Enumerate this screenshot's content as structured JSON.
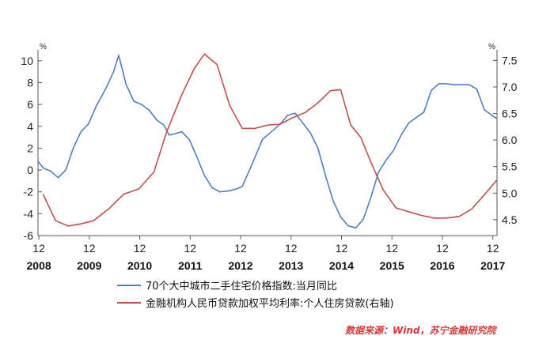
{
  "chart_data": {
    "type": "line",
    "left_axis": {
      "unit": "%",
      "ylim": [
        -6,
        11
      ],
      "ticks": [
        -6,
        -4,
        -2,
        0,
        2,
        4,
        6,
        8,
        10
      ]
    },
    "right_axis": {
      "unit": "%",
      "ylim": [
        4.2,
        7.7
      ],
      "ticks": [
        4.5,
        5.0,
        5.5,
        6.0,
        6.5,
        7.0,
        7.5
      ]
    },
    "x_axis": {
      "xlim": [
        2008.9,
        2018.0
      ],
      "ticks": [
        {
          "pos": 2008.917,
          "month": "12",
          "year": "2008"
        },
        {
          "pos": 2009.917,
          "month": "12",
          "year": "2009"
        },
        {
          "pos": 2010.917,
          "month": "12",
          "year": "2010"
        },
        {
          "pos": 2011.917,
          "month": "12",
          "year": "2011"
        },
        {
          "pos": 2012.917,
          "month": "12",
          "year": "2012"
        },
        {
          "pos": 2013.917,
          "month": "12",
          "year": "2013"
        },
        {
          "pos": 2014.917,
          "month": "12",
          "year": "2014"
        },
        {
          "pos": 2015.917,
          "month": "12",
          "year": "2015"
        },
        {
          "pos": 2016.917,
          "month": "12",
          "year": "2016"
        },
        {
          "pos": 2017.917,
          "month": "12",
          "year": "2017"
        }
      ]
    },
    "series": [
      {
        "name": "70个大中城市二手住宅价格指数:当月同比",
        "axis": "left",
        "color": "#4f7fbf",
        "points": [
          [
            2008.9,
            0.8
          ],
          [
            2009.0,
            0.2
          ],
          [
            2009.15,
            -0.1
          ],
          [
            2009.3,
            -0.7
          ],
          [
            2009.45,
            0.0
          ],
          [
            2009.6,
            2.0
          ],
          [
            2009.75,
            3.5
          ],
          [
            2009.9,
            4.2
          ],
          [
            2010.05,
            5.8
          ],
          [
            2010.25,
            7.5
          ],
          [
            2010.4,
            9.0
          ],
          [
            2010.5,
            10.5
          ],
          [
            2010.65,
            7.8
          ],
          [
            2010.8,
            6.3
          ],
          [
            2010.95,
            6.0
          ],
          [
            2011.1,
            5.5
          ],
          [
            2011.25,
            4.6
          ],
          [
            2011.4,
            4.1
          ],
          [
            2011.5,
            3.2
          ],
          [
            2011.6,
            3.3
          ],
          [
            2011.75,
            3.5
          ],
          [
            2011.9,
            2.8
          ],
          [
            2012.05,
            1.2
          ],
          [
            2012.2,
            -0.5
          ],
          [
            2012.35,
            -1.6
          ],
          [
            2012.5,
            -2.0
          ],
          [
            2012.7,
            -1.9
          ],
          [
            2012.85,
            -1.7
          ],
          [
            2012.95,
            -1.5
          ],
          [
            2013.15,
            0.6
          ],
          [
            2013.35,
            2.8
          ],
          [
            2013.55,
            3.6
          ],
          [
            2013.7,
            4.2
          ],
          [
            2013.85,
            5.0
          ],
          [
            2014.0,
            5.2
          ],
          [
            2014.15,
            4.3
          ],
          [
            2014.3,
            3.4
          ],
          [
            2014.45,
            2.0
          ],
          [
            2014.6,
            -0.5
          ],
          [
            2014.75,
            -2.8
          ],
          [
            2014.9,
            -4.3
          ],
          [
            2015.05,
            -5.1
          ],
          [
            2015.2,
            -5.3
          ],
          [
            2015.35,
            -4.5
          ],
          [
            2015.5,
            -2.5
          ],
          [
            2015.65,
            -0.2
          ],
          [
            2015.8,
            0.9
          ],
          [
            2015.95,
            1.8
          ],
          [
            2016.1,
            3.2
          ],
          [
            2016.25,
            4.3
          ],
          [
            2016.4,
            4.8
          ],
          [
            2016.55,
            5.3
          ],
          [
            2016.7,
            7.3
          ],
          [
            2016.85,
            7.9
          ],
          [
            2017.0,
            7.9
          ],
          [
            2017.15,
            7.8
          ],
          [
            2017.3,
            7.8
          ],
          [
            2017.45,
            7.8
          ],
          [
            2017.6,
            7.4
          ],
          [
            2017.75,
            5.5
          ],
          [
            2017.9,
            5.0
          ],
          [
            2018.0,
            4.7
          ]
        ]
      },
      {
        "name": "金融机构人民币贷款加权平均利率:个人住房贷款(右轴)",
        "axis": "right",
        "color": "#c0504d",
        "points": [
          [
            2009.0,
            4.98
          ],
          [
            2009.25,
            4.48
          ],
          [
            2009.5,
            4.38
          ],
          [
            2009.75,
            4.42
          ],
          [
            2010.0,
            4.48
          ],
          [
            2010.3,
            4.7
          ],
          [
            2010.6,
            4.98
          ],
          [
            2010.9,
            5.08
          ],
          [
            2011.2,
            5.4
          ],
          [
            2011.45,
            6.15
          ],
          [
            2011.75,
            6.85
          ],
          [
            2012.0,
            7.35
          ],
          [
            2012.2,
            7.62
          ],
          [
            2012.45,
            7.42
          ],
          [
            2012.7,
            6.65
          ],
          [
            2012.95,
            6.22
          ],
          [
            2013.2,
            6.22
          ],
          [
            2013.45,
            6.28
          ],
          [
            2013.7,
            6.3
          ],
          [
            2013.95,
            6.42
          ],
          [
            2014.2,
            6.52
          ],
          [
            2014.45,
            6.7
          ],
          [
            2014.7,
            6.93
          ],
          [
            2014.9,
            6.95
          ],
          [
            2015.1,
            6.28
          ],
          [
            2015.3,
            6.05
          ],
          [
            2015.5,
            5.58
          ],
          [
            2015.75,
            5.05
          ],
          [
            2016.0,
            4.72
          ],
          [
            2016.25,
            4.65
          ],
          [
            2016.5,
            4.58
          ],
          [
            2016.75,
            4.53
          ],
          [
            2017.0,
            4.53
          ],
          [
            2017.25,
            4.56
          ],
          [
            2017.5,
            4.7
          ],
          [
            2017.75,
            4.97
          ],
          [
            2018.0,
            5.25
          ]
        ]
      }
    ]
  },
  "source_text": "数据来源：Wind，苏宁金融研究院"
}
